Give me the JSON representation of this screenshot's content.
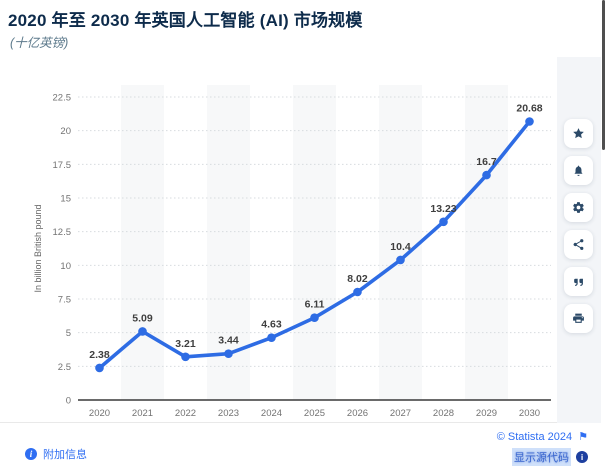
{
  "header": {
    "title": "2020 年至 2030 年英国人工智能 (AI) 市场规模",
    "subtitle": "(十亿英镑)"
  },
  "chart_data": {
    "type": "line",
    "title": "2020 年至 2030 年英国人工智能 (AI) 市场规模",
    "subtitle_unit": "十亿英镑",
    "categories": [
      "2020",
      "2021",
      "2022",
      "2023",
      "2024",
      "2025",
      "2026",
      "2027",
      "2028",
      "2029",
      "2030"
    ],
    "values": [
      2.38,
      5.09,
      3.21,
      3.44,
      4.63,
      6.11,
      8.02,
      10.4,
      13.23,
      16.7,
      20.68
    ],
    "labels": [
      "2.38",
      "5.09",
      "3.21",
      "3.44",
      "4.63",
      "6.11",
      "8.02",
      "10.4",
      "13.23",
      "16.7",
      "20.68"
    ],
    "xlabel": "",
    "ylabel": "In billion British pound",
    "ylim": [
      0,
      22.5
    ],
    "yticks": [
      "0",
      "2.5",
      "5",
      "7.5",
      "10",
      "12.5",
      "15",
      "17.5",
      "20",
      "22.5"
    ],
    "grid": "horizontal dotted, alternating light column bands",
    "legend": "none",
    "line_color": "#2e6ce4",
    "marker_color": "#2e6ce4",
    "band_color": "#f7f8f9",
    "value_label_color": "#3f3f3f",
    "tick_label_color": "#737373"
  },
  "toolbar": {
    "buttons": [
      {
        "name": "favorite",
        "icon": "star-icon"
      },
      {
        "name": "alerts",
        "icon": "bell-icon"
      },
      {
        "name": "settings",
        "icon": "gear-icon"
      },
      {
        "name": "share",
        "icon": "share-icon"
      },
      {
        "name": "cite",
        "icon": "quote-icon"
      },
      {
        "name": "print",
        "icon": "printer-icon"
      }
    ]
  },
  "footer": {
    "more_info": "附加信息",
    "copyright": "© Statista 2024",
    "show_source": "显示源代码"
  },
  "colors": {
    "title": "#0d2b4b",
    "subtitle": "#5d7a8c",
    "accent_blue": "#2f6ef2",
    "rail_background": "#f3f5f8",
    "icon": "#2c4a68"
  }
}
